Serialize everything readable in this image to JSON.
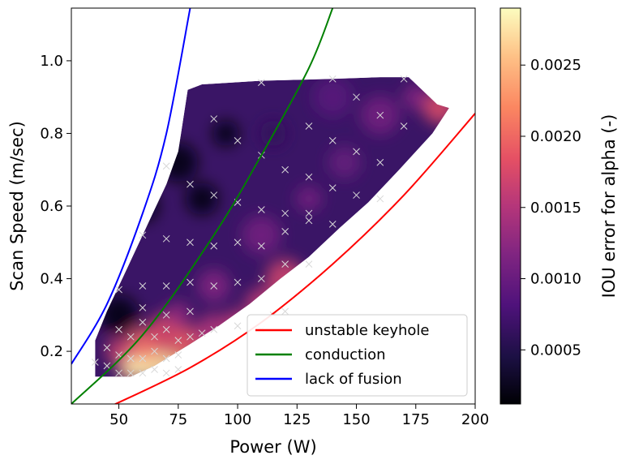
{
  "chart_data": {
    "type": "heatmap",
    "xlabel": "Power (W)",
    "ylabel": "Scan Speed (m/sec)",
    "xlim": [
      30,
      200
    ],
    "ylim": [
      0.055,
      1.145
    ],
    "x_ticks": [
      50,
      75,
      100,
      125,
      150,
      175,
      200
    ],
    "x_tick_labels": [
      "50",
      "75",
      "100",
      "125",
      "150",
      "175",
      "200"
    ],
    "y_ticks": [
      0.2,
      0.4,
      0.6,
      0.8,
      1.0
    ],
    "y_tick_labels": [
      "0.2",
      "0.4",
      "0.6",
      "0.8",
      "1.0"
    ],
    "colorbar": {
      "label": "IOU error for alpha (-)",
      "colormap": "magma",
      "range": [
        0.00012,
        0.0029
      ],
      "ticks": [
        0.0005,
        0.001,
        0.0015,
        0.002,
        0.0025
      ],
      "tick_labels": [
        "0.0005",
        "0.0010",
        "0.0015",
        "0.0020",
        "0.0025"
      ]
    },
    "region_boundary": [
      [
        40,
        0.13
      ],
      [
        40,
        0.23
      ],
      [
        45,
        0.31
      ],
      [
        50,
        0.38
      ],
      [
        55,
        0.45
      ],
      [
        60,
        0.52
      ],
      [
        65,
        0.59
      ],
      [
        70,
        0.66
      ],
      [
        75,
        0.75
      ],
      [
        79,
        0.92
      ],
      [
        85,
        0.935
      ],
      [
        110,
        0.945
      ],
      [
        140,
        0.95
      ],
      [
        160,
        0.955
      ],
      [
        172,
        0.955
      ],
      [
        184,
        0.88
      ],
      [
        189,
        0.87
      ],
      [
        182,
        0.8
      ],
      [
        168,
        0.7
      ],
      [
        155,
        0.61
      ],
      [
        143,
        0.54
      ],
      [
        130,
        0.46
      ],
      [
        118,
        0.4
      ],
      [
        105,
        0.33
      ],
      [
        92,
        0.27
      ],
      [
        80,
        0.22
      ],
      [
        65,
        0.16
      ],
      [
        55,
        0.13
      ],
      [
        40,
        0.13
      ]
    ],
    "heat_spots": [
      {
        "x": 55,
        "y": 0.15,
        "value": 0.0026
      },
      {
        "x": 60,
        "y": 0.18,
        "value": 0.0029
      },
      {
        "x": 67,
        "y": 0.16,
        "value": 0.0027
      },
      {
        "x": 75,
        "y": 0.16,
        "value": 0.0025
      },
      {
        "x": 60,
        "y": 0.22,
        "value": 0.002
      },
      {
        "x": 70,
        "y": 0.25,
        "value": 0.0018
      },
      {
        "x": 50,
        "y": 0.2,
        "value": 0.0017
      },
      {
        "x": 80,
        "y": 0.22,
        "value": 0.0019
      },
      {
        "x": 90,
        "y": 0.25,
        "value": 0.0015
      },
      {
        "x": 100,
        "y": 0.28,
        "value": 0.0016
      },
      {
        "x": 110,
        "y": 0.33,
        "value": 0.0016
      },
      {
        "x": 120,
        "y": 0.4,
        "value": 0.0017
      },
      {
        "x": 75,
        "y": 0.3,
        "value": 0.0013
      },
      {
        "x": 90,
        "y": 0.38,
        "value": 0.0012
      },
      {
        "x": 110,
        "y": 0.52,
        "value": 0.0011
      },
      {
        "x": 130,
        "y": 0.62,
        "value": 0.0011
      },
      {
        "x": 145,
        "y": 0.72,
        "value": 0.001
      },
      {
        "x": 160,
        "y": 0.85,
        "value": 0.0011
      },
      {
        "x": 175,
        "y": 0.9,
        "value": 0.0012
      },
      {
        "x": 185,
        "y": 0.87,
        "value": 0.0018
      },
      {
        "x": 140,
        "y": 0.9,
        "value": 0.0009
      },
      {
        "x": 115,
        "y": 0.8,
        "value": 0.0006
      },
      {
        "x": 60,
        "y": 0.6,
        "value": 0.00015
      },
      {
        "x": 75,
        "y": 0.72,
        "value": 0.00018
      },
      {
        "x": 95,
        "y": 0.8,
        "value": 0.00016
      },
      {
        "x": 85,
        "y": 0.62,
        "value": 0.0002
      },
      {
        "x": 50,
        "y": 0.3,
        "value": 0.0002
      }
    ],
    "sample_points": [
      [
        40,
        0.17
      ],
      [
        45,
        0.16
      ],
      [
        50,
        0.14
      ],
      [
        55,
        0.14
      ],
      [
        60,
        0.14
      ],
      [
        65,
        0.15
      ],
      [
        70,
        0.14
      ],
      [
        75,
        0.15
      ],
      [
        45,
        0.21
      ],
      [
        50,
        0.19
      ],
      [
        55,
        0.18
      ],
      [
        60,
        0.18
      ],
      [
        65,
        0.2
      ],
      [
        70,
        0.18
      ],
      [
        75,
        0.19
      ],
      [
        50,
        0.26
      ],
      [
        55,
        0.24
      ],
      [
        60,
        0.28
      ],
      [
        65,
        0.24
      ],
      [
        70,
        0.26
      ],
      [
        75,
        0.23
      ],
      [
        80,
        0.24
      ],
      [
        85,
        0.25
      ],
      [
        60,
        0.32
      ],
      [
        70,
        0.3
      ],
      [
        80,
        0.31
      ],
      [
        90,
        0.26
      ],
      [
        100,
        0.27
      ],
      [
        110,
        0.26
      ],
      [
        115,
        0.3
      ],
      [
        120,
        0.31
      ],
      [
        50,
        0.37
      ],
      [
        60,
        0.38
      ],
      [
        70,
        0.38
      ],
      [
        80,
        0.39
      ],
      [
        90,
        0.38
      ],
      [
        100,
        0.39
      ],
      [
        110,
        0.4
      ],
      [
        120,
        0.44
      ],
      [
        130,
        0.44
      ],
      [
        60,
        0.52
      ],
      [
        70,
        0.51
      ],
      [
        80,
        0.5
      ],
      [
        90,
        0.49
      ],
      [
        100,
        0.5
      ],
      [
        110,
        0.49
      ],
      [
        120,
        0.53
      ],
      [
        130,
        0.56
      ],
      [
        140,
        0.55
      ],
      [
        70,
        0.71
      ],
      [
        80,
        0.66
      ],
      [
        90,
        0.63
      ],
      [
        100,
        0.61
      ],
      [
        110,
        0.59
      ],
      [
        120,
        0.58
      ],
      [
        130,
        0.58
      ],
      [
        140,
        0.65
      ],
      [
        150,
        0.63
      ],
      [
        160,
        0.62
      ],
      [
        90,
        0.84
      ],
      [
        100,
        0.78
      ],
      [
        110,
        0.74
      ],
      [
        120,
        0.7
      ],
      [
        130,
        0.68
      ],
      [
        140,
        0.78
      ],
      [
        150,
        0.75
      ],
      [
        160,
        0.72
      ],
      [
        110,
        0.94
      ],
      [
        130,
        0.82
      ],
      [
        150,
        0.9
      ],
      [
        160,
        0.85
      ],
      [
        170,
        0.82
      ],
      [
        140,
        0.95
      ],
      [
        170,
        0.95
      ]
    ],
    "series": [
      {
        "name": "unstable keyhole",
        "color": "#ff0000",
        "points": [
          [
            47,
            0.05
          ],
          [
            80,
            0.155
          ],
          [
            110,
            0.28
          ],
          [
            140,
            0.44
          ],
          [
            170,
            0.63
          ],
          [
            200,
            0.855
          ]
        ]
      },
      {
        "name": "conduction",
        "color": "#008000",
        "points": [
          [
            30,
            0.055
          ],
          [
            60,
            0.245
          ],
          [
            90,
            0.52
          ],
          [
            110,
            0.74
          ],
          [
            130,
            0.98
          ],
          [
            140,
            1.145
          ]
        ]
      },
      {
        "name": "lack of fusion",
        "color": "#0000ff",
        "points": [
          [
            30,
            0.165
          ],
          [
            45,
            0.33
          ],
          [
            60,
            0.58
          ],
          [
            70,
            0.8
          ],
          [
            80,
            1.145
          ]
        ]
      }
    ],
    "legend": {
      "position": "lower-right"
    }
  }
}
